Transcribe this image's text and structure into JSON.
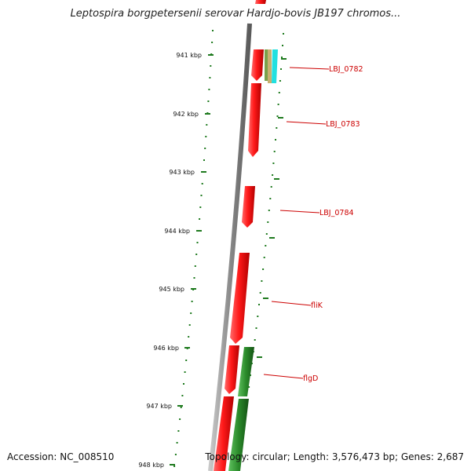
{
  "title": "Leptospira borgpetersenii serovar Hardjo-bovis JB197 chromos...",
  "footer": {
    "accession": "Accession: NC_008510",
    "topology": "Topology: circular; Length: 3,576,473 bp; Genes: 2,687"
  },
  "scale_ticks": [
    "941 kbp",
    "942 kbp",
    "943 kbp",
    "944 kbp",
    "945 kbp",
    "946 kbp",
    "947 kbp",
    "948 kbp"
  ],
  "gene_labels": [
    "LBJ_0782",
    "LBJ_0783",
    "LBJ_0784",
    "fliK",
    "flgD"
  ],
  "colors": {
    "backbone": "#888888",
    "forward_genes": "#ee1111",
    "reverse_genes": "#2a8a2a",
    "tick_marks": "#1e7a1e",
    "labels": "#cc0000",
    "feature_tan": "#c8b070",
    "feature_cyan": "#22e0e0",
    "feature_green_small": "#7aa04a"
  }
}
